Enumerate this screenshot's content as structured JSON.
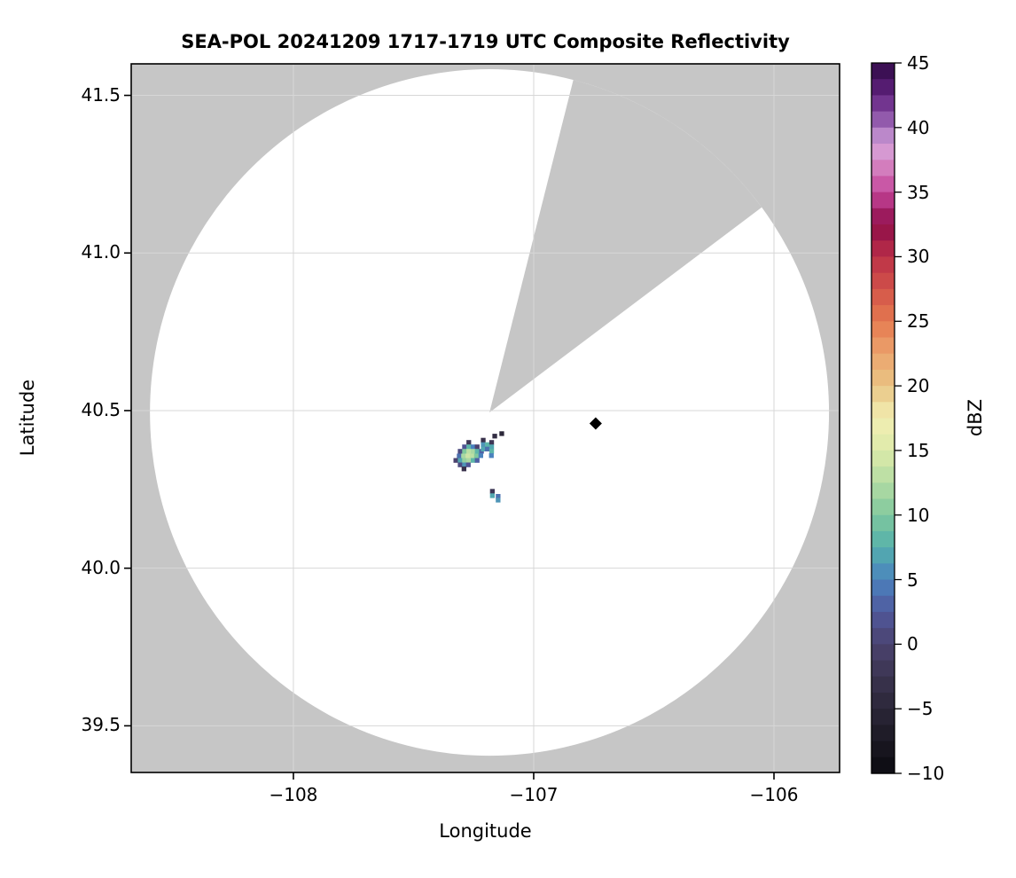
{
  "title": "SEA-POL 20241209 1717-1719 UTC Composite Reflectivity",
  "chart_data": {
    "type": "heatmap",
    "title": "SEA-POL 20241209 1717-1719 UTC Composite Reflectivity",
    "xlabel": "Longitude",
    "ylabel": "Latitude",
    "xlim": [
      -108.675,
      -105.727
    ],
    "ylim": [
      39.352,
      41.6
    ],
    "xticks": [
      -108,
      -107,
      -106
    ],
    "xtick_labels": [
      "−108",
      "−107",
      "−106"
    ],
    "yticks": [
      41.5,
      41.0,
      40.5,
      40.0,
      39.5
    ],
    "ytick_labels": [
      "41.5",
      "41.0",
      "40.5",
      "40.0",
      "39.5"
    ],
    "grid": true,
    "grid_color": "#d7d7d7",
    "masked_color": "#c6c6c6",
    "coverage_color": "#ffffff",
    "radar_coverage": {
      "center_lon": -107.184,
      "center_lat": 40.494,
      "radius_lon_deg": 1.413,
      "radius_lat_deg": 1.089,
      "blocked_sector_azimuth_deg": [
        14.3,
        54.2
      ]
    },
    "site_marker": {
      "lon": -106.742,
      "lat": 40.459,
      "shape": "diamond",
      "color": "#000000"
    },
    "colorbar": {
      "label": "dBZ",
      "min": -10,
      "max": 45,
      "ticks": [
        45,
        40,
        35,
        30,
        25,
        20,
        15,
        10,
        5,
        0,
        -5,
        -10
      ],
      "tick_labels": [
        "45",
        "40",
        "35",
        "30",
        "25",
        "20",
        "15",
        "10",
        "5",
        "0",
        "−5",
        "−10"
      ],
      "band_step": 1.25,
      "color_stops": [
        [
          -10,
          "#0b0a10"
        ],
        [
          -7.5,
          "#1b1823"
        ],
        [
          -5,
          "#2b2738"
        ],
        [
          -2.5,
          "#3b3450"
        ],
        [
          0,
          "#4b426e"
        ],
        [
          2.5,
          "#50589c"
        ],
        [
          5,
          "#4a82be"
        ],
        [
          7.5,
          "#54b0ac"
        ],
        [
          10,
          "#80c89d"
        ],
        [
          12.5,
          "#b4dca3"
        ],
        [
          15,
          "#ddeaaa"
        ],
        [
          17.5,
          "#f2eeb2"
        ],
        [
          20,
          "#e9c484"
        ],
        [
          22.5,
          "#eca46d"
        ],
        [
          25,
          "#e57950"
        ],
        [
          27.5,
          "#d25349"
        ],
        [
          30,
          "#bb3048"
        ],
        [
          32.5,
          "#8e0d49"
        ],
        [
          35,
          "#c4459a"
        ],
        [
          37.5,
          "#d88fc9"
        ],
        [
          38.75,
          "#d4a3da"
        ],
        [
          40,
          "#a26cba"
        ],
        [
          42.5,
          "#622280"
        ],
        [
          45,
          "#2f0a45"
        ]
      ]
    },
    "cell_size_deg": {
      "lon": 0.0196,
      "lat": 0.0149
    },
    "echo_cells": [
      [
        -107.27,
        40.399,
        -2
      ],
      [
        -107.288,
        40.385,
        2
      ],
      [
        -107.27,
        40.385,
        8
      ],
      [
        -107.252,
        40.385,
        5
      ],
      [
        -107.235,
        40.385,
        0
      ],
      [
        -107.306,
        40.371,
        1
      ],
      [
        -107.288,
        40.371,
        10
      ],
      [
        -107.27,
        40.371,
        13
      ],
      [
        -107.252,
        40.371,
        12
      ],
      [
        -107.235,
        40.371,
        8
      ],
      [
        -107.217,
        40.371,
        3
      ],
      [
        -107.31,
        40.356,
        4
      ],
      [
        -107.292,
        40.356,
        12
      ],
      [
        -107.274,
        40.356,
        14
      ],
      [
        -107.256,
        40.356,
        13
      ],
      [
        -107.238,
        40.356,
        10
      ],
      [
        -107.22,
        40.357,
        5
      ],
      [
        -107.324,
        40.342,
        0
      ],
      [
        -107.306,
        40.342,
        7
      ],
      [
        -107.288,
        40.342,
        11
      ],
      [
        -107.27,
        40.342,
        12
      ],
      [
        -107.252,
        40.342,
        8
      ],
      [
        -107.235,
        40.342,
        3
      ],
      [
        -107.306,
        40.328,
        1
      ],
      [
        -107.288,
        40.328,
        6
      ],
      [
        -107.272,
        40.328,
        2
      ],
      [
        -107.29,
        40.315,
        -3
      ],
      [
        -107.21,
        40.406,
        -3
      ],
      [
        -107.21,
        40.392,
        6
      ],
      [
        -107.193,
        40.392,
        8
      ],
      [
        -107.21,
        40.378,
        7
      ],
      [
        -107.193,
        40.378,
        4
      ],
      [
        -107.175,
        40.399,
        -2
      ],
      [
        -107.175,
        40.385,
        7
      ],
      [
        -107.175,
        40.371,
        8
      ],
      [
        -107.176,
        40.357,
        5
      ],
      [
        -107.162,
        40.419,
        -4
      ],
      [
        -107.133,
        40.427,
        -5
      ],
      [
        -107.172,
        40.244,
        -2
      ],
      [
        -107.172,
        40.23,
        7
      ],
      [
        -107.148,
        40.228,
        4
      ],
      [
        -107.148,
        40.216,
        6
      ]
    ]
  }
}
